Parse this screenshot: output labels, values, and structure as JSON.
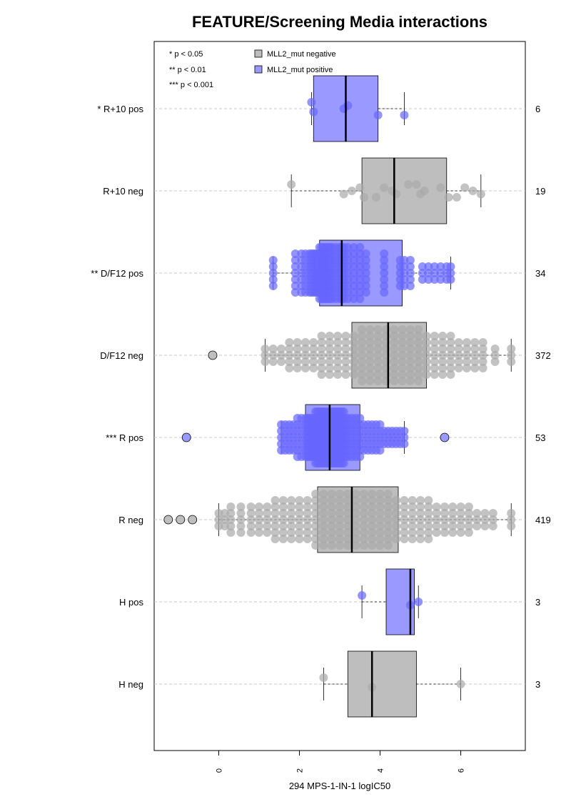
{
  "chart_data": {
    "type": "boxplot-beeswarm",
    "title": "FEATURE/Screening Media interactions",
    "xlabel": "294 MPS-1-IN-1 logIC50",
    "xlim": [
      -1.6,
      7.6
    ],
    "x_ticks": [
      0,
      2,
      4,
      6
    ],
    "x_tick_labels": [
      "0",
      "2",
      "4",
      "6"
    ],
    "grid": "horizontal-dashed",
    "significance_legend": [
      "* p < 0.05",
      "** p < 0.01",
      "*** p < 0.001"
    ],
    "legend": {
      "placement": "top",
      "entries": [
        {
          "label": "MLL2_mut negative",
          "color": "#bebebe"
        },
        {
          "label": "MLL2_mut positive",
          "color": "#9999ff"
        }
      ]
    },
    "colors": {
      "negative_box": "#bebebe",
      "positive_box": "#9999ff",
      "negative_point": "#aaaaaa",
      "positive_point": "#6666ff",
      "grid": "#c8c8c8"
    },
    "groups": [
      {
        "label": "* R+10 pos",
        "count": "6",
        "status": "positive",
        "stats": {
          "whisker_low": 2.3,
          "q1": 2.35,
          "median": 3.15,
          "q3": 3.95,
          "whisker_high": 4.6
        },
        "outliers": [],
        "points": [
          2.3,
          2.35,
          3.1,
          3.2,
          3.95,
          4.6
        ]
      },
      {
        "label": "R+10 neg",
        "count": "19",
        "status": "negative",
        "stats": {
          "whisker_low": 1.8,
          "q1": 3.55,
          "median": 4.35,
          "q3": 5.65,
          "whisker_high": 6.5
        },
        "outliers": [],
        "points": [
          1.8,
          3.1,
          3.3,
          3.5,
          3.6,
          3.9,
          4.1,
          4.3,
          4.4,
          4.7,
          4.9,
          5.0,
          5.1,
          5.5,
          5.7,
          5.9,
          6.1,
          6.3,
          6.5
        ]
      },
      {
        "label": "** D/F12 pos",
        "count": "34",
        "status": "positive",
        "stats": {
          "whisker_low": 1.35,
          "q1": 2.5,
          "median": 3.05,
          "q3": 4.55,
          "whisker_high": 5.75
        },
        "outliers": [],
        "points": [
          1.35,
          1.9,
          2.05,
          2.15,
          2.25,
          2.3,
          2.35,
          2.4,
          2.45,
          2.5,
          2.55,
          2.6,
          2.65,
          2.7,
          2.75,
          2.8,
          2.9,
          3.0,
          3.05,
          3.1,
          3.2,
          3.35,
          3.5,
          3.65,
          4.1,
          4.5,
          4.6,
          4.75,
          5.05,
          5.2,
          5.35,
          5.5,
          5.65,
          5.75
        ]
      },
      {
        "label": "D/F12 neg",
        "count": "372",
        "status": "negative",
        "stats": {
          "whisker_low": 1.15,
          "q1": 3.3,
          "median": 4.2,
          "q3": 5.15,
          "whisker_high": 7.25
        },
        "outliers": [
          -0.15
        ],
        "points": [
          1.15,
          1.35,
          1.55,
          1.75,
          1.95,
          2.15,
          2.35,
          2.55,
          2.75,
          2.95,
          3.15,
          3.35,
          3.55,
          3.75,
          3.95,
          4.15,
          4.35,
          4.55,
          4.75,
          4.95,
          5.15,
          5.35,
          5.55,
          5.75,
          5.95,
          6.15,
          6.35,
          6.55,
          6.85,
          7.25
        ]
      },
      {
        "label": "*** R pos",
        "count": "53",
        "status": "positive",
        "stats": {
          "whisker_low": 1.55,
          "q1": 2.15,
          "median": 2.75,
          "q3": 3.5,
          "whisker_high": 4.6
        },
        "outliers": [
          -0.8,
          5.6
        ],
        "points": [
          1.55,
          1.65,
          1.75,
          1.85,
          1.95,
          2.05,
          2.15,
          2.2,
          2.25,
          2.3,
          2.35,
          2.4,
          2.45,
          2.5,
          2.55,
          2.6,
          2.65,
          2.7,
          2.75,
          2.8,
          2.85,
          2.9,
          2.95,
          3.0,
          3.05,
          3.1,
          3.15,
          3.2,
          3.3,
          3.4,
          3.5,
          3.6,
          3.7,
          3.8,
          3.9,
          4.0,
          4.1,
          4.2,
          4.3,
          4.4,
          4.5,
          4.6
        ]
      },
      {
        "label": "R neg",
        "count": "419",
        "status": "negative",
        "stats": {
          "whisker_low": 0.0,
          "q1": 2.45,
          "median": 3.3,
          "q3": 4.45,
          "whisker_high": 7.25
        },
        "outliers": [
          -1.25,
          -0.95,
          -0.65
        ],
        "points": [
          0.0,
          0.15,
          0.3,
          0.55,
          0.8,
          1.0,
          1.2,
          1.4,
          1.6,
          1.8,
          2.0,
          2.2,
          2.4,
          2.6,
          2.8,
          3.0,
          3.2,
          3.4,
          3.6,
          3.8,
          4.0,
          4.2,
          4.4,
          4.6,
          4.8,
          5.0,
          5.2,
          5.4,
          5.6,
          5.8,
          6.0,
          6.2,
          6.4,
          6.6,
          6.8,
          7.25
        ]
      },
      {
        "label": "H pos",
        "count": "3",
        "status": "positive",
        "stats": {
          "whisker_low": 3.55,
          "q1": 4.15,
          "median": 4.75,
          "q3": 4.85,
          "whisker_high": 4.95
        },
        "outliers": [],
        "points": [
          3.55,
          4.75,
          4.95
        ]
      },
      {
        "label": "H neg",
        "count": "3",
        "status": "negative",
        "stats": {
          "whisker_low": 2.6,
          "q1": 3.2,
          "median": 3.8,
          "q3": 4.9,
          "whisker_high": 6.0
        },
        "outliers": [],
        "points": [
          2.6,
          3.8,
          6.0
        ]
      }
    ]
  }
}
